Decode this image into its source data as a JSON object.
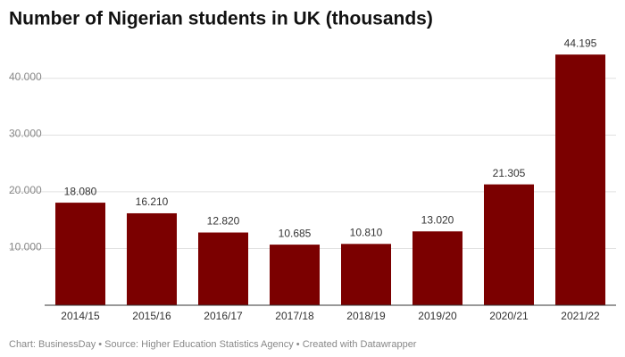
{
  "chart_data": {
    "type": "bar",
    "title": "Number of Nigerian students in UK (thousands)",
    "categories": [
      "2014/15",
      "2015/16",
      "2016/17",
      "2017/18",
      "2018/19",
      "2019/20",
      "2020/21",
      "2021/22"
    ],
    "values": [
      18.08,
      16.21,
      12.82,
      10.685,
      10.81,
      13.02,
      21.305,
      44.195
    ],
    "value_labels": [
      "18.080",
      "16.210",
      "12.820",
      "10.685",
      "10.810",
      "13.020",
      "21.305",
      "44.195"
    ],
    "color": "#7b0000",
    "ylim": [
      0,
      45
    ],
    "yticks": [
      {
        "value": 10,
        "label": "10.000"
      },
      {
        "value": 20,
        "label": "20.000"
      },
      {
        "value": 30,
        "label": "30.000"
      },
      {
        "value": 40,
        "label": "40.000"
      }
    ],
    "grid": true,
    "footer": "Chart: BusinessDay • Source: Higher Education Statistics Agency • Created with Datawrapper"
  }
}
